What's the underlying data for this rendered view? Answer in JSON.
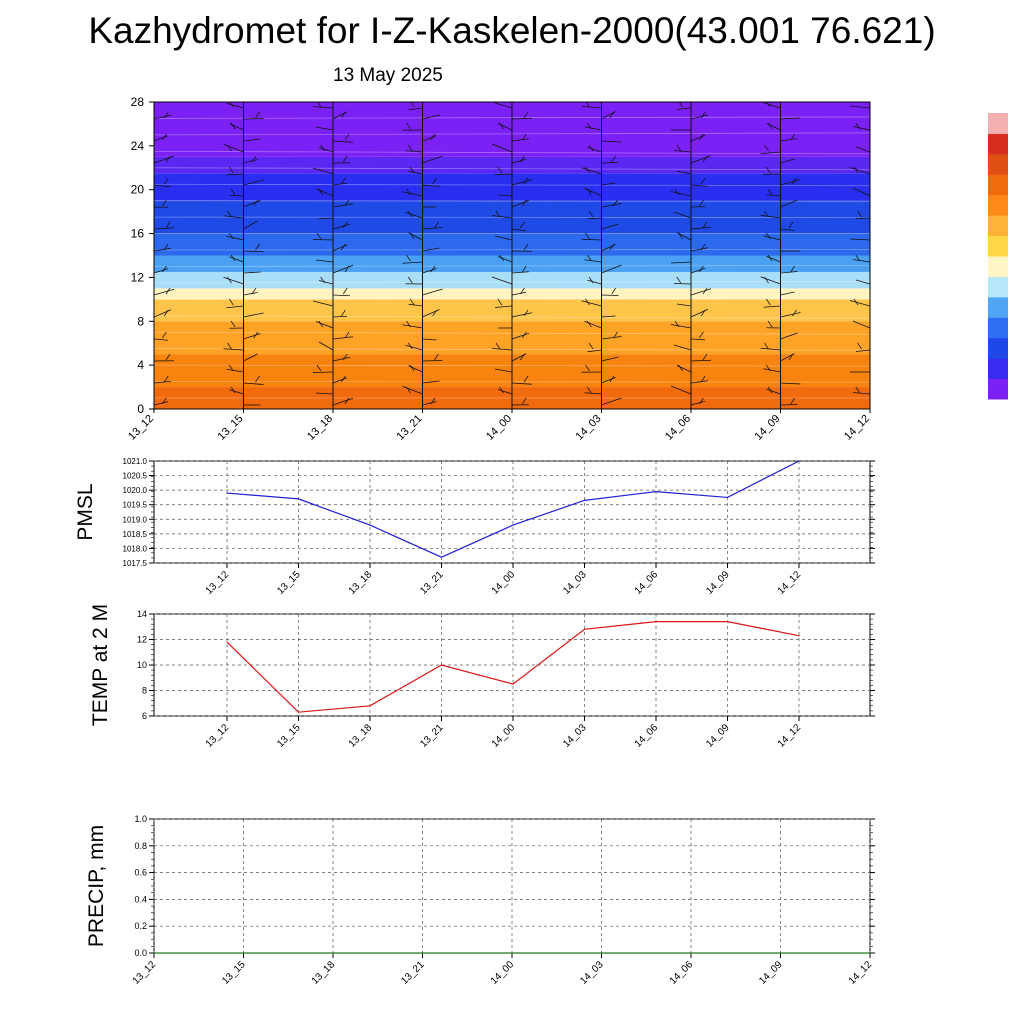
{
  "title": "Kazhydromet for I-Z-Kaskelen-2000(43.001 76.621)",
  "date": "13 May 2025",
  "colors": {
    "pmsl_line": "#1f1fd6",
    "temp_line": "#e01414",
    "precip_line": "#1a7a1a",
    "grid": "#555555",
    "palette": [
      "#7b21f5",
      "#3a2bf0",
      "#1e49e8",
      "#2e6ef2",
      "#4fa6f5",
      "#b8e6fb",
      "#fff6c8",
      "#ffd84a",
      "#ffb23a",
      "#ff8a1a",
      "#f26a0e",
      "#e05015",
      "#d52d1f"
    ]
  },
  "chart_data": [
    {
      "type": "heatmap",
      "name": "vertical-profile",
      "x_tick_labels": [
        "13_12",
        "13_15",
        "13_18",
        "13_21",
        "14_00",
        "14_03",
        "14_06",
        "14_09",
        "14_12"
      ],
      "y_tick_labels": [
        "0",
        "4",
        "8",
        "12",
        "16",
        "20",
        "24",
        "28"
      ],
      "ylim": [
        0,
        28
      ],
      "color_bands": [
        {
          "from": 0,
          "to": 2,
          "color": "#f26a0e"
        },
        {
          "from": 2,
          "to": 5,
          "color": "#f8830e"
        },
        {
          "from": 5,
          "to": 8,
          "color": "#ffa326"
        },
        {
          "from": 8,
          "to": 10,
          "color": "#ffc54a"
        },
        {
          "from": 10,
          "to": 11,
          "color": "#fff3c0"
        },
        {
          "from": 11,
          "to": 12.5,
          "color": "#a9def9"
        },
        {
          "from": 12.5,
          "to": 14,
          "color": "#4aa0f2"
        },
        {
          "from": 14,
          "to": 16,
          "color": "#2c69ef"
        },
        {
          "from": 16,
          "to": 19,
          "color": "#1f4ae6"
        },
        {
          "from": 19,
          "to": 21.5,
          "color": "#2a2ef0"
        },
        {
          "from": 21.5,
          "to": 23,
          "color": "#5b27f2"
        },
        {
          "from": 23,
          "to": 28,
          "color": "#7b21f5"
        }
      ],
      "wind_barb_columns": [
        "13_12",
        "13_15",
        "13_18",
        "13_21",
        "14_00",
        "14_03",
        "14_06",
        "14_09",
        "14_12"
      ],
      "grid": false
    },
    {
      "type": "line",
      "name": "pmsl",
      "ylabel": "PMSL",
      "categories": [
        "13_12",
        "13_15",
        "13_18",
        "13_21",
        "14_00",
        "14_03",
        "14_06",
        "14_09",
        "14_12"
      ],
      "values": [
        1019.9,
        1019.7,
        1018.8,
        1017.7,
        1018.8,
        1019.65,
        1019.95,
        1019.75,
        1021.0
      ],
      "ylim": [
        1017.5,
        1021.0
      ],
      "y_tick_labels": [
        "1017.5",
        "1018.0",
        "1018.5",
        "1019.0",
        "1019.5",
        "1020.0",
        "1020.5",
        "1021.0"
      ],
      "grid": true
    },
    {
      "type": "line",
      "name": "temp",
      "ylabel": "TEMP at 2 M",
      "categories": [
        "13_12",
        "13_15",
        "13_18",
        "13_21",
        "14_00",
        "14_03",
        "14_06",
        "14_09",
        "14_12"
      ],
      "values": [
        11.8,
        6.3,
        6.8,
        10.0,
        8.5,
        12.8,
        13.4,
        13.4,
        12.3
      ],
      "ylim": [
        6,
        14
      ],
      "y_tick_labels": [
        "6",
        "8",
        "10",
        "12",
        "14"
      ],
      "grid": true
    },
    {
      "type": "line",
      "name": "precip",
      "ylabel": "PRECIP, mm",
      "x_tick_labels": [
        "13_12",
        "13_15",
        "13_18",
        "13_21",
        "14_00",
        "14_03",
        "14_06",
        "14_09",
        "14_12"
      ],
      "values": [
        0,
        0,
        0,
        0,
        0,
        0,
        0,
        0,
        0
      ],
      "ylim": [
        0,
        1
      ],
      "y_tick_labels": [
        "0.0",
        "0.2",
        "0.4",
        "0.6",
        "0.8",
        "1.0"
      ],
      "grid": true
    }
  ]
}
